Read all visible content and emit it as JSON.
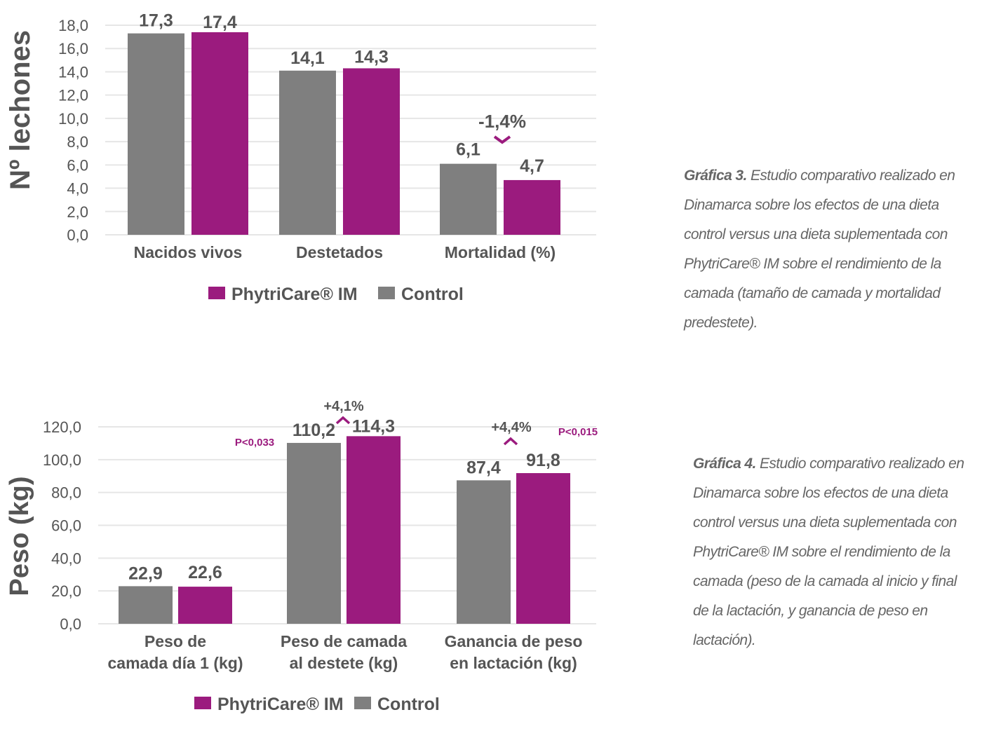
{
  "colors": {
    "phytricare": "#9b1b7e",
    "control": "#7f7f7f",
    "text": "#555555",
    "grid": "#e6e6e6"
  },
  "chart_data": [
    {
      "type": "bar",
      "ylabel": "Nº lechones",
      "ylim": [
        0,
        18
      ],
      "yticks": [
        "0,0",
        "2,0",
        "4,0",
        "6,0",
        "8,0",
        "10,0",
        "12,0",
        "14,0",
        "16,0",
        "18,0"
      ],
      "categories": [
        "Nacidos vivos",
        "Destetados",
        "Mortalidad (%)"
      ],
      "series": [
        {
          "name": "Control",
          "values": [
            17.3,
            14.1,
            6.1
          ],
          "labels": [
            "17,3",
            "14,1",
            "6,1"
          ]
        },
        {
          "name": "PhytriCare® IM",
          "values": [
            17.4,
            14.3,
            4.7
          ],
          "labels": [
            "17,4",
            "14,3",
            "4,7"
          ]
        }
      ],
      "annotations": [
        {
          "category": "Mortalidad (%)",
          "text": "-1,4%",
          "direction": "down"
        }
      ],
      "legend": [
        "PhytriCare® IM",
        "Control"
      ],
      "grid": true,
      "legend_position": "bottom"
    },
    {
      "type": "bar",
      "ylabel": "Peso (kg)",
      "ylim": [
        0,
        120
      ],
      "yticks": [
        "0,0",
        "20,0",
        "40,0",
        "60,0",
        "80,0",
        "100,0",
        "120,0"
      ],
      "categories": [
        "Peso de camada día 1 (kg)",
        "Peso de camada al destete (kg)",
        "Ganancia de peso en lactación (kg)"
      ],
      "category_lines": [
        [
          "Peso de",
          "camada día 1 (kg)"
        ],
        [
          "Peso de camada",
          "al destete (kg)"
        ],
        [
          "Ganancia de peso",
          "en lactación (kg)"
        ]
      ],
      "series": [
        {
          "name": "Control",
          "values": [
            22.9,
            110.2,
            87.4
          ],
          "labels": [
            "22,9",
            "110,2",
            "87,4"
          ]
        },
        {
          "name": "PhytriCare® IM",
          "values": [
            22.6,
            114.3,
            91.8
          ],
          "labels": [
            "22,6",
            "114,3",
            "91,8"
          ]
        }
      ],
      "annotations": [
        {
          "category": "Peso de camada al destete (kg)",
          "text": "+4,1%",
          "direction": "up",
          "pvalue": "P<0,033"
        },
        {
          "category": "Ganancia de peso en lactación (kg)",
          "text": "+4,4%",
          "direction": "up",
          "pvalue": "P<0,015"
        }
      ],
      "legend": [
        "PhytriCare® IM",
        "Control"
      ],
      "grid": true,
      "legend_position": "bottom"
    }
  ],
  "captions": [
    {
      "label": "Gráfica 3.",
      "text": "Estudio comparativo realizado en Dinamarca sobre los efectos de una dieta control versus una dieta suplementada con PhytriCare® IM sobre el rendimiento de la camada (tamaño de camada y mortalidad predestete)."
    },
    {
      "label": "Gráfica 4.",
      "text": "Estudio comparativo realizado en Dinamarca sobre los efectos de una dieta control versus una dieta suplementada con PhytriCare® IM sobre el rendimiento de la camada (peso de la camada al inicio y final de la lactación, y ganancia de peso en lactación)."
    }
  ]
}
